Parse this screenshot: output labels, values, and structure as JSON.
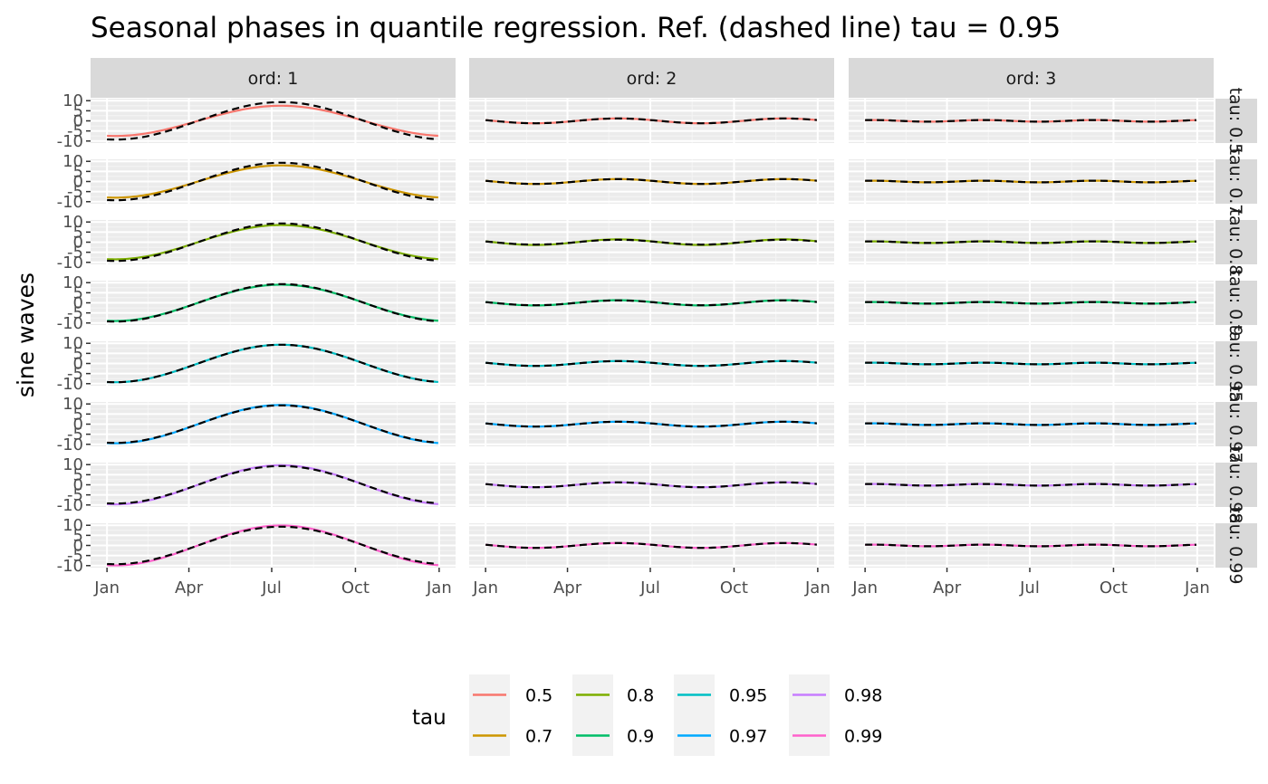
{
  "chart_data": {
    "type": "line",
    "title": "Seasonal phases in quantile regression. Ref. (dashed line) tau = 0.95",
    "xlabel": "",
    "ylabel": "sine waves",
    "x_tick_labels": [
      "Jan",
      "Apr",
      "Jul",
      "Oct",
      "Jan"
    ],
    "x_tick_days": [
      0,
      90,
      181,
      273,
      365
    ],
    "y_tick_labels": [
      "-10",
      "-5",
      "0",
      "5",
      "10"
    ],
    "y_tick_values": [
      -10,
      -5,
      0,
      5,
      10
    ],
    "ylim": [
      -11,
      11
    ],
    "grid": true,
    "legend": {
      "title": "tau",
      "position": "bottom"
    },
    "columns": [
      {
        "label": "ord: 1",
        "order": 1
      },
      {
        "label": "ord: 2",
        "order": 2
      },
      {
        "label": "ord: 3",
        "order": 3
      }
    ],
    "row_strip_label": "tau: 0",
    "reference": {
      "tau": "0.95",
      "style": "dashed",
      "color": "#000000"
    },
    "series": [
      {
        "name": "0.5",
        "color": "#F8766D",
        "amplitude": [
          7.5,
          1.2,
          0.4
        ]
      },
      {
        "name": "0.7",
        "color": "#CD9600",
        "amplitude": [
          8.0,
          1.2,
          0.4
        ]
      },
      {
        "name": "0.8",
        "color": "#7CAE00",
        "amplitude": [
          8.5,
          1.4,
          0.4
        ]
      },
      {
        "name": "0.9",
        "color": "#00BE67",
        "amplitude": [
          9.0,
          1.3,
          0.4
        ]
      },
      {
        "name": "0.95",
        "color": "#00BFC4",
        "amplitude": [
          9.3,
          1.2,
          0.4
        ]
      },
      {
        "name": "0.97",
        "color": "#00A9FF",
        "amplitude": [
          9.5,
          1.2,
          0.4
        ]
      },
      {
        "name": "0.98",
        "color": "#C77CFF",
        "amplitude": [
          9.7,
          1.2,
          0.4
        ]
      },
      {
        "name": "0.99",
        "color": "#FF61CC",
        "amplitude": [
          9.9,
          1.2,
          0.4
        ]
      }
    ],
    "reference_amplitude": [
      9.3,
      1.2,
      0.4
    ]
  }
}
